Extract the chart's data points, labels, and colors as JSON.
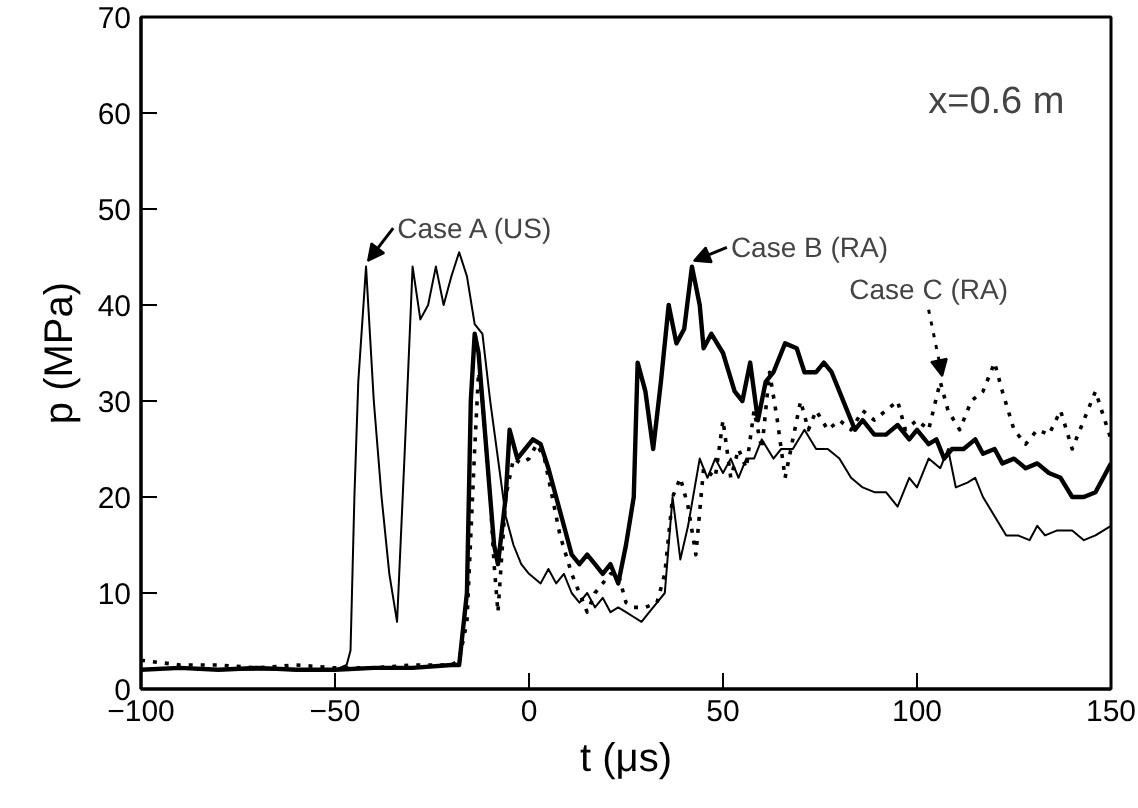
{
  "chart_data": {
    "type": "line",
    "xlabel": "t (μs)",
    "ylabel": "p (MPa)",
    "xlim": [
      -100,
      150
    ],
    "ylim": [
      0,
      70
    ],
    "xticks": [
      -100,
      -50,
      0,
      50,
      100,
      150
    ],
    "yticks": [
      0,
      10,
      20,
      30,
      40,
      50,
      60,
      70
    ],
    "grid": false,
    "marker": "none",
    "annotations": [
      "x=0.6 m",
      {
        "text": "Case A (US)",
        "x": -42,
        "y": 44
      },
      {
        "text": "Case B (RA)",
        "x": 42,
        "y": 44
      },
      {
        "text": "Case C (RA)",
        "x": 106,
        "y": 32
      }
    ],
    "series": [
      {
        "color": "#000000",
        "line_style": "solid",
        "x": [
          -100,
          -90,
          -80,
          -70,
          -60,
          -50,
          -47,
          -46,
          -45,
          -44,
          -42,
          -40,
          -38,
          -36,
          -34,
          -32,
          -30,
          -28,
          -26,
          -24,
          -22,
          -20,
          -18,
          -16,
          -14,
          -12,
          -10,
          -8,
          -6,
          -4,
          -2,
          0,
          3,
          5,
          7,
          9,
          11,
          13,
          15,
          17,
          19,
          21,
          23,
          25,
          27,
          29,
          31,
          33,
          35,
          37,
          39,
          41,
          44,
          46,
          48,
          50,
          52,
          54,
          56,
          58,
          60,
          63,
          65,
          68,
          71,
          74,
          77,
          80,
          83,
          86,
          89,
          92,
          95,
          98,
          100,
          103,
          106,
          108,
          110,
          113,
          115,
          117,
          120,
          123,
          126,
          129,
          131,
          133,
          136,
          140,
          143,
          146,
          150
        ],
        "values": [
          2,
          2.2,
          2,
          2,
          2,
          2,
          2.5,
          4,
          20,
          32,
          44,
          30,
          20,
          12,
          7,
          25,
          44,
          38.5,
          40,
          44,
          40,
          43,
          45.5,
          43,
          38,
          37,
          30,
          24,
          18,
          15,
          13,
          12,
          11,
          12.5,
          11,
          12,
          10,
          9,
          10,
          8.5,
          9.5,
          8,
          8.5,
          8,
          7.5,
          7,
          8,
          9,
          10,
          20,
          13.5,
          17,
          24,
          22,
          24,
          22.5,
          24,
          22,
          24,
          24,
          26,
          24,
          25,
          25,
          27,
          25,
          25,
          24,
          22,
          21,
          20.5,
          20.5,
          19,
          22,
          21,
          24,
          23,
          25,
          21,
          21.5,
          22,
          20,
          18,
          16,
          16,
          15.5,
          17,
          16,
          16.5,
          16.5,
          15.5,
          16,
          17
        ]
      },
      {
        "color": "#000000",
        "line_style": "solid",
        "x": [
          -100,
          -90,
          -80,
          -70,
          -60,
          -50,
          -40,
          -30,
          -20,
          -18,
          -16,
          -15,
          -14,
          -13,
          -11,
          -9,
          -8,
          -6,
          -5,
          -3,
          -1,
          1,
          3,
          5,
          7,
          9,
          11,
          13,
          15,
          17,
          19,
          21,
          23,
          25,
          27,
          28,
          30,
          32,
          34,
          36,
          38,
          40,
          42,
          44,
          45,
          47,
          50,
          53,
          55,
          57,
          59,
          61,
          63,
          66,
          69,
          71,
          74,
          76,
          78,
          80,
          82,
          84,
          86,
          89,
          92,
          95,
          98,
          100,
          103,
          105,
          107,
          109,
          112,
          115,
          117,
          120,
          122,
          125,
          128,
          131,
          134,
          137,
          140,
          143,
          146,
          150
        ],
        "values": [
          2,
          2.2,
          2,
          2.2,
          2,
          2,
          2.2,
          2.2,
          2.5,
          2.5,
          10,
          30,
          37,
          35,
          25,
          15,
          13,
          20,
          27,
          24,
          25,
          26,
          25.5,
          23,
          20,
          17,
          14,
          13,
          14,
          13,
          12,
          13,
          11,
          15,
          20,
          34,
          31,
          25,
          32,
          40,
          36,
          37.5,
          44,
          40,
          35.5,
          37,
          35,
          31,
          30,
          34,
          28,
          32,
          33,
          36,
          35.5,
          33,
          33,
          34,
          33,
          31,
          29,
          27,
          28,
          26.5,
          26.5,
          27.5,
          26,
          27,
          25.5,
          26,
          24,
          25,
          25,
          26,
          24.5,
          25,
          23.5,
          24,
          23,
          23.5,
          22.5,
          22,
          20,
          20,
          20.5,
          23.5
        ]
      },
      {
        "color": "#000000",
        "line_style": "dotted",
        "x": [
          -100,
          -90,
          -80,
          -70,
          -60,
          -50,
          -40,
          -30,
          -20,
          -18,
          -16,
          -14,
          -13,
          -12,
          -10,
          -9,
          -8,
          -6,
          -4,
          -2,
          0,
          2,
          4,
          6,
          8,
          11,
          13,
          15,
          17,
          19,
          21,
          23,
          25,
          27,
          30,
          33,
          35,
          37,
          39,
          41,
          43,
          45,
          48,
          50,
          52,
          54,
          56,
          58,
          60,
          62,
          64,
          66,
          68,
          70,
          72,
          74,
          77,
          80,
          83,
          86,
          89,
          92,
          95,
          97,
          100,
          103,
          106,
          108,
          111,
          114,
          117,
          120,
          122,
          125,
          128,
          131,
          134,
          137,
          140,
          143,
          146,
          150
        ],
        "values": [
          3,
          2.5,
          2.5,
          2.2,
          2.5,
          2.2,
          2.2,
          2.5,
          2.5,
          3,
          7,
          25,
          33,
          30,
          20,
          13,
          8,
          20,
          24,
          23.5,
          24,
          25.5,
          24,
          20,
          16,
          12,
          10,
          8,
          10,
          11,
          12,
          12,
          9,
          8.5,
          8.5,
          9,
          12,
          20,
          22,
          19,
          14,
          23,
          22,
          28,
          22,
          25,
          23,
          29,
          25,
          33,
          28,
          22,
          26,
          30,
          27,
          29,
          27,
          28,
          27,
          29,
          28,
          29,
          30,
          27,
          28,
          27,
          32,
          29,
          27,
          30,
          31,
          34,
          31,
          27,
          25.5,
          27,
          26.5,
          29,
          25,
          28,
          31,
          26
        ]
      }
    ]
  }
}
